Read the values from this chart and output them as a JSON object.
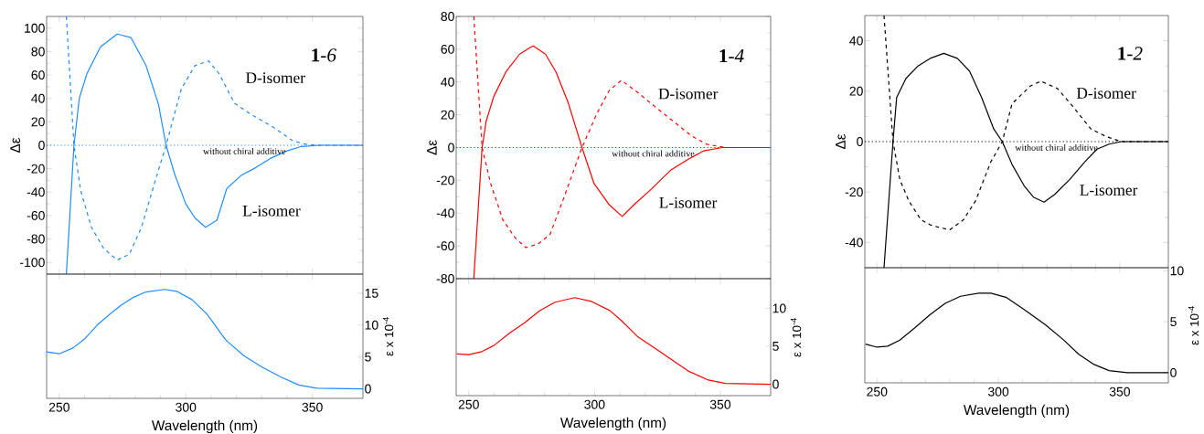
{
  "chart_data": [
    {
      "type": "line",
      "title": "**1**-*6*",
      "ylabel": "Δε",
      "xlim": [
        245,
        370
      ],
      "xticks": [
        250,
        300,
        350
      ],
      "ylim": [
        -110,
        110
      ],
      "yticks": [
        -100,
        -80,
        -60,
        -40,
        -20,
        0,
        20,
        40,
        60,
        80,
        100
      ],
      "tick_labels": "y",
      "series": [
        {
          "name": "D-isomer",
          "color": "#1e8cff",
          "line_style": "dashed",
          "x": [
            252.8,
            255.8,
            258.5,
            262.7,
            267.5,
            272.9,
            277.7,
            282.5,
            287.4,
            292.2,
            298.2,
            303.6,
            309,
            313.2,
            319.2,
            325.3,
            334.9,
            342.1,
            346.9,
            353,
            370
          ],
          "values": [
            110,
            0,
            -39,
            -70,
            -88,
            -98,
            -93,
            -70,
            -34,
            0,
            48,
            68,
            72,
            61,
            36,
            27,
            15,
            4,
            1,
            0,
            0
          ]
        },
        {
          "name": "L-isomer",
          "color": "#1e8cff",
          "line_style": "solid",
          "x": [
            252.8,
            255.8,
            257.9,
            260.9,
            266.3,
            272.9,
            278.3,
            284.3,
            289.2,
            292.2,
            295.8,
            300,
            303.6,
            307.8,
            312.3,
            316.2,
            321.7,
            327.7,
            333.7,
            339.7,
            345.7,
            353,
            370
          ],
          "values": [
            -110,
            0,
            40,
            61,
            84,
            95,
            92,
            68,
            35,
            0,
            -26,
            -50,
            -62,
            -70,
            -64,
            -37,
            -26,
            -19,
            -11,
            -5,
            -1,
            0,
            0
          ]
        },
        {
          "name": "without chiral additive",
          "color": "#1e8cff",
          "line_style": "dotted",
          "x": [
            245,
            270,
            300,
            330,
            370
          ],
          "values": [
            0,
            0,
            0,
            0,
            0
          ]
        }
      ]
    },
    {
      "type": "line",
      "title": "**1**-*4*",
      "ylabel": "Δε",
      "xlim": [
        245,
        370
      ],
      "xticks": [
        250,
        300,
        350
      ],
      "ylim": [
        -80,
        80
      ],
      "yticks": [
        -80,
        -60,
        -40,
        -20,
        0,
        20,
        40,
        60,
        80
      ],
      "tick_labels": "y",
      "series": [
        {
          "name": "D-isomer",
          "color": "#ff0000",
          "line_style": "dashed",
          "x": [
            252,
            255.3,
            258.7,
            263.5,
            268.4,
            272.6,
            277.4,
            282.3,
            287.7,
            295,
            301,
            305.9,
            310.7,
            316.8,
            324,
            331.3,
            338.6,
            344.6,
            351.9,
            370
          ],
          "values": [
            80,
            0,
            -22,
            -44,
            -55,
            -61,
            -59,
            -53,
            -31,
            0,
            21,
            35,
            41,
            34,
            25,
            16,
            7,
            2,
            0,
            0
          ]
        },
        {
          "name": "L-isomer",
          "color": "#ff0000",
          "line_style": "solid",
          "x": [
            252,
            255.3,
            256.9,
            259.9,
            264.7,
            270.2,
            274.4,
            275.6,
            280.5,
            284.7,
            289.6,
            295,
            299.8,
            305.9,
            311,
            315.6,
            322.8,
            330.1,
            337.4,
            343.4,
            350.7,
            370
          ],
          "values": [
            -80,
            0,
            16,
            31,
            46,
            57,
            61,
            62,
            57,
            46,
            27,
            0,
            -22,
            -35,
            -42,
            -35,
            -25,
            -14,
            -7,
            -2,
            0,
            0
          ]
        },
        {
          "name": "without chiral additive",
          "color": "#ff0000",
          "line_style": "dotted",
          "x": [
            245,
            270,
            300,
            330,
            370
          ],
          "values": [
            0,
            0,
            0,
            0,
            0
          ]
        }
      ]
    },
    {
      "type": "line",
      "title": "**1**-*2*",
      "ylabel": "Δε",
      "xlim": [
        245,
        370
      ],
      "xticks": [
        250,
        300,
        350
      ],
      "ylim": [
        -50,
        50
      ],
      "yticks": [
        -40,
        -20,
        0,
        20,
        40
      ],
      "tick_labels": "y",
      "series": [
        {
          "name": "D-isomer",
          "color": "#000000",
          "line_style": "dashed",
          "x": [
            252.9,
            256.6,
            259.4,
            263.1,
            268.1,
            271.9,
            275.6,
            280,
            285.6,
            290.6,
            296.9,
            301.6,
            305.6,
            313.1,
            317.5,
            324.4,
            330.6,
            338.1,
            344.4,
            350.6,
            370
          ],
          "values": [
            50,
            0,
            -15,
            -23.5,
            -31,
            -33,
            -34,
            -35,
            -31,
            -23.5,
            -8,
            0,
            15,
            22,
            24,
            21,
            14,
            5,
            2,
            0,
            0
          ]
        },
        {
          "name": "L-isomer",
          "color": "#000000",
          "line_style": "solid",
          "x": [
            252.9,
            256.6,
            258.1,
            261.9,
            266.9,
            271.9,
            277.5,
            283.1,
            288.1,
            293.1,
            298.1,
            301.6,
            305.6,
            310.6,
            314.4,
            318.8,
            323.1,
            329.4,
            335.6,
            340.6,
            345.6,
            350.6,
            370
          ],
          "values": [
            -50,
            0,
            17.5,
            25,
            30,
            33,
            35,
            33,
            28,
            17.5,
            5,
            0,
            -9,
            -17.5,
            -22,
            -24,
            -21,
            -15,
            -8,
            -3,
            -1,
            0,
            0
          ]
        },
        {
          "name": "without chiral additive",
          "color": "#000000",
          "line_style": "dotted",
          "x": [
            245,
            270,
            300,
            330,
            370
          ],
          "values": [
            0,
            0,
            0,
            0,
            0
          ]
        }
      ]
    },
    {
      "type": "line",
      "xlabel": "Wavelength (nm)",
      "y2label": "ε x 10$^{-4}$",
      "xlim": [
        245,
        370
      ],
      "xticks": [
        250,
        300,
        350
      ],
      "y2lim": [
        -1.5,
        18
      ],
      "y2ticks": [
        0,
        5,
        10,
        15
      ],
      "series": [
        {
          "axis": "y2",
          "color": "#1e8cff",
          "line_style": "solid",
          "x": [
            245,
            250,
            255.4,
            260.2,
            265,
            269.9,
            274.7,
            279.5,
            284.3,
            291.6,
            296.4,
            302.4,
            308.4,
            315.7,
            322.9,
            330.1,
            337.3,
            344.6,
            351.8,
            370
          ],
          "values": [
            5.8,
            5.5,
            6.4,
            7.9,
            10,
            11.7,
            13.2,
            14.4,
            15.2,
            15.6,
            15.3,
            14,
            11.7,
            7.7,
            5.2,
            3.4,
            1.9,
            0.6,
            0.1,
            0
          ]
        }
      ]
    },
    {
      "type": "line",
      "xlabel": "Wavelength (nm)",
      "y2label": "ε x 10$^{-4}$",
      "xlim": [
        245,
        370
      ],
      "xticks": [
        250,
        300,
        350
      ],
      "y2lim": [
        -1.5,
        13.9
      ],
      "y2ticks": [
        0,
        5,
        10
      ],
      "series": [
        {
          "axis": "y2",
          "color": "#ff0000",
          "line_style": "solid",
          "x": [
            245.2,
            250,
            255.2,
            260,
            266.1,
            272.2,
            278.2,
            284.3,
            292.1,
            298.8,
            306.1,
            310.9,
            317,
            324.2,
            330.3,
            337.5,
            344.8,
            352,
            370
          ],
          "values": [
            4,
            3.9,
            4.3,
            5.1,
            6.7,
            8.1,
            9.7,
            10.8,
            11.4,
            10.9,
            9.7,
            8.3,
            6.3,
            4.7,
            3.3,
            1.7,
            0.6,
            0.1,
            0
          ]
        }
      ]
    },
    {
      "type": "line",
      "xlabel": "Wavelength (nm)",
      "y2label": "ε x 10$^{-4}$",
      "xlim": [
        245,
        370
      ],
      "xticks": [
        250,
        300,
        350
      ],
      "y2lim": [
        -1,
        10.3
      ],
      "y2ticks": [
        0,
        5,
        10
      ],
      "series": [
        {
          "axis": "y2",
          "color": "#000000",
          "line_style": "solid",
          "x": [
            245.3,
            250,
            254.4,
            259.4,
            265.6,
            271.9,
            278.1,
            284.4,
            291.9,
            296.9,
            303.1,
            310.6,
            319.4,
            326.9,
            333.1,
            339.4,
            345.6,
            353.1,
            370
          ],
          "values": [
            2.8,
            2.5,
            2.6,
            3.2,
            4.4,
            5.7,
            6.8,
            7.5,
            7.8,
            7.8,
            7.4,
            6.2,
            4.7,
            3.2,
            1.8,
            0.8,
            0.2,
            0,
            0
          ]
        }
      ]
    }
  ]
}
